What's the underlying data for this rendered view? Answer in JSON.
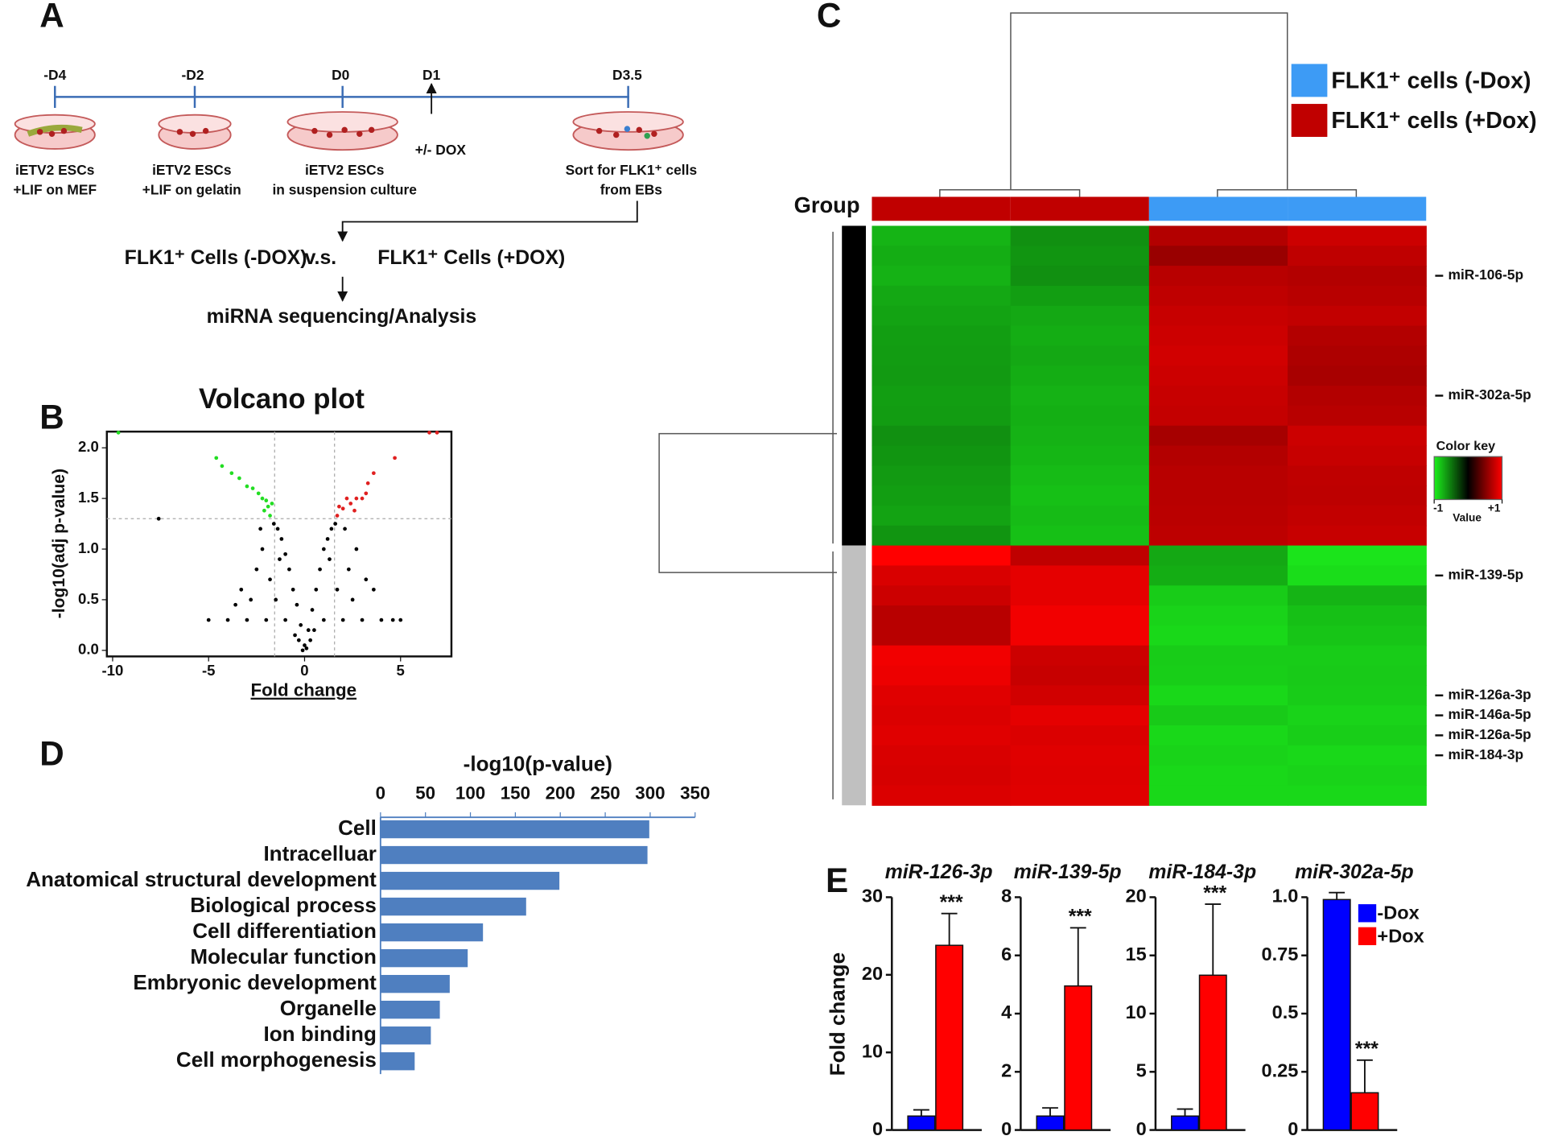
{
  "diagram": {
    "panel_label": "A",
    "timepoints": [
      "-D4",
      "-D2",
      "D0",
      "D1",
      "D3.5"
    ],
    "stages": [
      [
        "iETV2 ESCs",
        "+LIF on MEF"
      ],
      [
        "iETV2 ESCs",
        "+LIF on gelatin"
      ],
      [
        "iETV2 ESCs",
        "in suspension culture"
      ],
      [
        "Sort for FLK1⁺ cells",
        "from EBs"
      ]
    ],
    "treatment": "+/- DOX",
    "comparison": [
      "FLK1⁺ Cells (-DOX)",
      "v.s.",
      "FLK1⁺ Cells (+DOX)"
    ],
    "output": "miRNA sequencing/Analysis"
  },
  "chart_data": [
    {
      "type": "scatter",
      "panel_label": "B",
      "title": "Volcano plot",
      "xlabel": "Fold change",
      "ylabel": "-log10(adj p-value)",
      "xlim": [
        -10.3,
        7.65
      ],
      "ylim": [
        -0.06,
        2.16
      ],
      "xticks": [
        -10,
        -5,
        0,
        5
      ],
      "yticks": [
        {
          "value": 0,
          "label": "0.0"
        },
        0.5,
        {
          "value": 1,
          "label": "1.0"
        },
        1.5,
        {
          "value": 2,
          "label": "2.0"
        }
      ],
      "threshold_x": [
        -1.56,
        1.56
      ],
      "threshold_y": 1.3,
      "series": [
        {
          "color": "#22dd22",
          "x": [
            -9.7,
            -4.6,
            -4.3,
            -3.8,
            -3.4,
            -3.0,
            -2.7,
            -2.4,
            -2.2,
            -2.0,
            -1.9,
            -1.7,
            -2.1,
            -1.8
          ],
          "values": [
            2.15,
            1.9,
            1.82,
            1.75,
            1.7,
            1.62,
            1.6,
            1.55,
            1.5,
            1.48,
            1.42,
            1.45,
            1.38,
            1.33
          ]
        },
        {
          "color": "#e02020",
          "x": [
            6.5,
            6.9,
            4.7,
            3.6,
            3.3,
            3.2,
            3.0,
            2.7,
            2.4,
            2.2,
            2.0,
            1.8,
            2.6,
            1.7
          ],
          "values": [
            2.15,
            2.15,
            1.9,
            1.75,
            1.65,
            1.55,
            1.5,
            1.5,
            1.45,
            1.5,
            1.4,
            1.42,
            1.38,
            1.33
          ]
        },
        {
          "color": "#000000",
          "x": [
            -7.6,
            -5,
            5,
            4.6,
            -1.6,
            -1.4,
            -1.2,
            -1.0,
            -0.8,
            -0.6,
            -0.4,
            -0.2,
            0,
            0.2,
            0.4,
            0.6,
            0.8,
            1.0,
            1.2,
            1.4,
            1.6,
            -2.2,
            -2.5,
            -1.8,
            -1.5,
            -2.8,
            -3,
            -2,
            -1,
            1,
            2,
            3,
            2.5,
            1.7,
            2.3,
            2.7,
            3.2,
            -3.3,
            -0.3,
            0.3,
            -0.1,
            0.1,
            -0.5,
            0.5,
            -2.3,
            2.1,
            -1.3,
            1.3,
            -4,
            4,
            3.6,
            -3.6
          ],
          "values": [
            1.3,
            0.3,
            0.3,
            0.3,
            1.25,
            1.2,
            1.1,
            0.95,
            0.8,
            0.6,
            0.45,
            0.25,
            0.05,
            0.2,
            0.4,
            0.6,
            0.8,
            1.0,
            1.1,
            1.2,
            1.25,
            1.0,
            0.8,
            0.7,
            0.5,
            0.5,
            0.3,
            0.3,
            0.3,
            0.3,
            0.3,
            0.3,
            0.5,
            0.6,
            0.8,
            1.0,
            0.7,
            0.6,
            0.1,
            0.1,
            0.0,
            0.02,
            0.15,
            0.2,
            1.2,
            1.2,
            0.9,
            0.9,
            0.3,
            0.3,
            0.6,
            0.45
          ]
        }
      ]
    },
    {
      "type": "heatmap",
      "panel_label": "C",
      "group_label": "Group",
      "column_colors": [
        "#c00000",
        "#c00000",
        "#3d9bf5",
        "#3d9bf5"
      ],
      "legend": [
        {
          "name": "FLK1⁺ cells (-Dox)",
          "color": "#3d9bf5"
        },
        {
          "name": "FLK1⁺ cells (+Dox)",
          "color": "#c00000"
        }
      ],
      "row_cluster_sizes": [
        16,
        13
      ],
      "row_cluster_colors": [
        "#000000",
        "#c0c0c0"
      ],
      "row_labels": [
        null,
        null,
        "miR-106-5p",
        null,
        null,
        null,
        null,
        null,
        "miR-302a-5p",
        null,
        null,
        null,
        null,
        null,
        null,
        null,
        null,
        "miR-139-5p",
        null,
        null,
        null,
        null,
        null,
        "miR-126a-3p",
        "miR-146a-5p",
        "miR-126a-5p",
        "miR-184-3p",
        null,
        null
      ],
      "zlim": [
        -1,
        1
      ],
      "colors": [
        "#1cf01c",
        "#000000",
        "#ff0000"
      ],
      "color_key": {
        "title": "Color key",
        "label": "Value",
        "ticks": [
          -1,
          {
            "value": 1,
            "label": "+1"
          }
        ]
      },
      "values": [
        [
          -0.75,
          -0.6,
          0.7,
          0.8
        ],
        [
          -0.72,
          -0.62,
          0.6,
          0.75
        ],
        [
          -0.74,
          -0.6,
          0.72,
          0.7
        ],
        [
          -0.7,
          -0.66,
          0.75,
          0.72
        ],
        [
          -0.68,
          -0.7,
          0.78,
          0.76
        ],
        [
          -0.66,
          -0.72,
          0.8,
          0.7
        ],
        [
          -0.65,
          -0.7,
          0.82,
          0.68
        ],
        [
          -0.64,
          -0.72,
          0.8,
          0.66
        ],
        [
          -0.66,
          -0.74,
          0.78,
          0.7
        ],
        [
          -0.65,
          -0.73,
          0.77,
          0.72
        ],
        [
          -0.6,
          -0.74,
          0.65,
          0.8
        ],
        [
          -0.62,
          -0.76,
          0.7,
          0.78
        ],
        [
          -0.64,
          -0.78,
          0.72,
          0.75
        ],
        [
          -0.66,
          -0.8,
          0.72,
          0.74
        ],
        [
          -0.68,
          -0.78,
          0.73,
          0.76
        ],
        [
          -0.62,
          -0.8,
          0.74,
          0.78
        ],
        [
          1,
          0.75,
          -0.7,
          -0.95
        ],
        [
          0.85,
          0.9,
          -0.72,
          -0.92
        ],
        [
          0.8,
          0.9,
          -0.85,
          -0.75
        ],
        [
          0.72,
          0.95,
          -0.88,
          -0.8
        ],
        [
          0.72,
          0.95,
          -0.9,
          -0.82
        ],
        [
          0.95,
          0.8,
          -0.85,
          -0.85
        ],
        [
          0.93,
          0.78,
          -0.86,
          -0.84
        ],
        [
          0.88,
          0.82,
          -0.9,
          -0.85
        ],
        [
          0.86,
          0.9,
          -0.84,
          -0.88
        ],
        [
          0.88,
          0.86,
          -0.9,
          -0.86
        ],
        [
          0.85,
          0.88,
          -0.88,
          -0.9
        ],
        [
          0.84,
          0.87,
          -0.9,
          -0.88
        ],
        [
          0.86,
          0.88,
          -0.9,
          -0.9
        ]
      ]
    },
    {
      "type": "hbar",
      "panel_label": "D",
      "title": "-log10(p-value)",
      "categories": [
        "Cell",
        "Intracelluar",
        "Anatomical structural development",
        "Biological process",
        "Cell differentiation",
        "Molecular function",
        "Embryonic development",
        "Organelle",
        "Ion binding",
        "Cell morphogenesis"
      ],
      "values": [
        299,
        297,
        199,
        162,
        114,
        97,
        77,
        66,
        56,
        38
      ],
      "color": "#4f7fc0",
      "xlim": [
        0,
        350
      ],
      "xticks": [
        0,
        50,
        100,
        150,
        200,
        250,
        300,
        350
      ]
    },
    {
      "type": "bar",
      "panel_label": "E",
      "title": "miR-126-3p",
      "ylabel": "Fold change",
      "ylim": [
        0,
        30
      ],
      "yticks": [
        0,
        10,
        20,
        30
      ],
      "series": [
        {
          "color": "#0000ff",
          "values": [
            1.8
          ],
          "errors": [
            0.8
          ]
        },
        {
          "color": "#ff0000",
          "values": [
            23.8
          ],
          "errors": [
            4.1
          ],
          "annotation": "***"
        }
      ]
    },
    {
      "type": "bar",
      "title": "miR-139-5p",
      "ylim": [
        0,
        8
      ],
      "yticks": [
        0,
        2,
        4,
        6,
        8
      ],
      "series": [
        {
          "color": "#0000ff",
          "values": [
            0.48
          ],
          "errors": [
            0.28
          ]
        },
        {
          "color": "#ff0000",
          "values": [
            4.95
          ],
          "errors": [
            2.0
          ],
          "annotation": "***"
        }
      ]
    },
    {
      "type": "bar",
      "title": "miR-184-3p",
      "ylim": [
        0,
        20
      ],
      "yticks": [
        0,
        5,
        10,
        15,
        20
      ],
      "series": [
        {
          "color": "#0000ff",
          "values": [
            1.2
          ],
          "errors": [
            0.6
          ]
        },
        {
          "color": "#ff0000",
          "values": [
            13.3
          ],
          "errors": [
            6.1
          ],
          "annotation": "***"
        }
      ]
    },
    {
      "type": "bar",
      "title": "miR-302a-5p",
      "ylim": [
        0,
        1
      ],
      "yticks": [
        0,
        0.25,
        0.5,
        0.75,
        {
          "value": 1,
          "label": "1.0"
        }
      ],
      "legend": true,
      "series": [
        {
          "name": "-Dox",
          "color": "#0000ff",
          "values": [
            0.99
          ],
          "errors": [
            0.03
          ]
        },
        {
          "name": "+Dox",
          "color": "#ff0000",
          "values": [
            0.16
          ],
          "errors": [
            0.14
          ],
          "annotation": "***"
        }
      ]
    }
  ]
}
